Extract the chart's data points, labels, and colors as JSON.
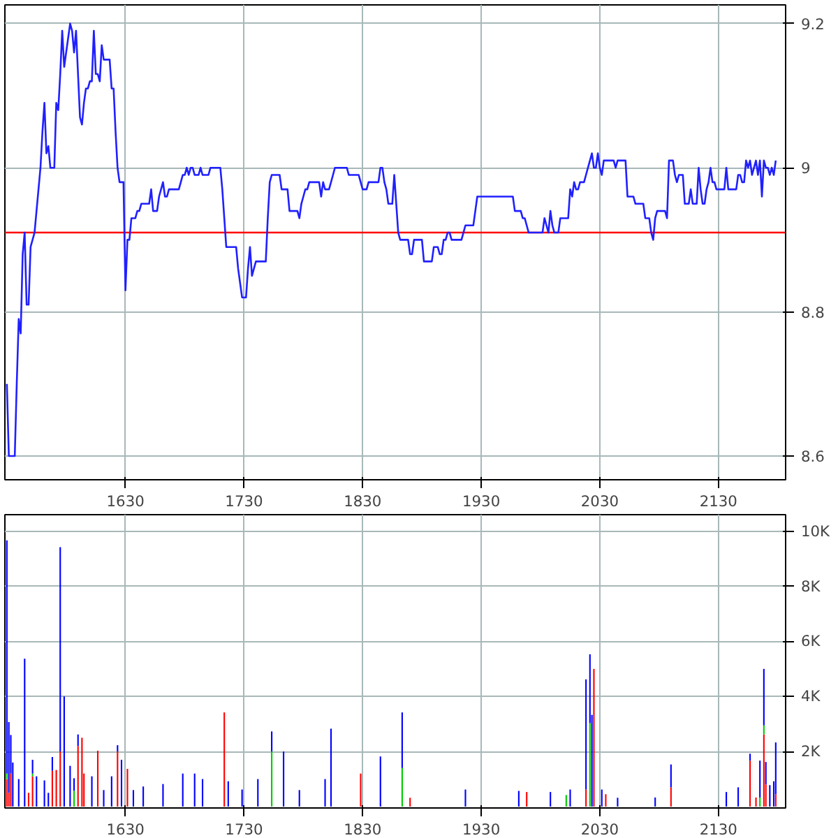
{
  "chart_data": [
    {
      "type": "line",
      "ylim": [
        8.567,
        9.226
      ],
      "grid": true,
      "yticks": [
        {
          "value": 8.6,
          "label": "8.6"
        },
        {
          "value": 8.8,
          "label": "8.8"
        },
        {
          "value": 9,
          "label": "9"
        },
        {
          "value": 9.2,
          "label": "9.2"
        }
      ],
      "ref_lines": [
        {
          "axis": "y",
          "value": 8.91,
          "color": "#ff0000"
        }
      ],
      "categories": [
        null,
        null,
        null,
        null,
        null,
        null,
        null,
        null,
        null,
        null,
        null,
        null,
        null,
        null,
        null,
        null,
        null,
        null,
        null,
        null,
        null,
        null,
        null,
        null,
        null,
        null,
        null,
        null,
        null,
        null,
        null,
        null,
        null,
        null,
        null,
        null,
        null,
        null,
        null,
        null,
        null,
        null,
        null,
        null,
        null,
        null,
        null,
        null,
        null,
        null,
        null,
        null,
        null,
        null,
        null,
        null,
        null,
        null,
        null,
        null,
        "1630",
        null,
        null,
        null,
        null,
        null,
        null,
        null,
        null,
        null,
        null,
        null,
        null,
        null,
        null,
        null,
        null,
        null,
        null,
        null,
        null,
        null,
        null,
        null,
        null,
        null,
        null,
        null,
        null,
        null,
        null,
        null,
        null,
        null,
        null,
        null,
        null,
        null,
        null,
        null,
        null,
        null,
        null,
        null,
        null,
        null,
        null,
        null,
        null,
        null,
        null,
        null,
        null,
        null,
        null,
        null,
        null,
        null,
        null,
        null,
        "1730",
        null,
        null,
        null,
        null,
        null,
        null,
        null,
        null,
        null,
        null,
        null,
        null,
        null,
        null,
        null,
        null,
        null,
        null,
        null,
        null,
        null,
        null,
        null,
        null,
        null,
        null,
        null,
        null,
        null,
        null,
        null,
        null,
        null,
        null,
        null,
        null,
        null,
        null,
        null,
        null,
        null,
        null,
        null,
        null,
        null,
        null,
        null,
        null,
        null,
        null,
        null,
        null,
        null,
        null,
        null,
        null,
        null,
        null,
        null,
        "1830",
        null,
        null,
        null,
        null,
        null,
        null,
        null,
        null,
        null,
        null,
        null,
        null,
        null,
        null,
        null,
        null,
        null,
        null,
        null,
        null,
        null,
        null,
        null,
        null,
        null,
        null,
        null,
        null,
        null,
        null,
        null,
        null,
        null,
        null,
        null,
        null,
        null,
        null,
        null,
        null,
        null,
        null,
        null,
        null,
        null,
        null,
        null,
        null,
        null,
        null,
        null,
        null,
        null,
        null,
        null,
        null,
        null,
        null,
        null,
        "1930",
        null,
        null,
        null,
        null,
        null,
        null,
        null,
        null,
        null,
        null,
        null,
        null,
        null,
        null,
        null,
        null,
        null,
        null,
        null,
        null,
        null,
        null,
        null,
        null,
        null,
        null,
        null,
        null,
        null,
        null,
        null,
        null,
        null,
        null,
        null,
        null,
        null,
        null,
        null,
        null,
        null,
        null,
        null,
        null,
        null,
        null,
        null,
        null,
        null,
        null,
        null,
        null,
        null,
        null,
        null,
        null,
        null,
        null,
        null,
        "2030",
        null,
        null,
        null,
        null,
        null,
        null,
        null,
        null,
        null,
        null,
        null,
        null,
        null,
        null,
        null,
        null,
        null,
        null,
        null,
        null,
        null,
        null,
        null,
        null,
        null,
        null,
        null,
        null,
        null,
        null,
        null,
        null,
        null,
        null,
        null,
        null,
        null,
        null,
        null,
        null,
        null,
        null,
        null,
        null,
        null,
        null,
        null,
        null,
        null,
        null,
        null,
        null,
        null,
        null,
        null,
        null,
        null,
        null,
        null,
        "2130",
        null,
        null,
        null,
        null,
        null,
        null,
        null,
        null,
        null,
        null,
        null,
        null,
        null,
        null,
        null,
        null,
        null,
        null,
        null,
        null,
        null,
        null,
        null,
        null,
        null,
        null,
        null,
        null,
        null,
        null,
        null,
        null,
        null
      ],
      "series": [
        {
          "color": "#2020ff",
          "values": [
            8.7,
            8.6,
            8.6,
            8.6,
            8.6,
            8.7,
            8.79,
            8.77,
            8.88,
            8.91,
            8.81,
            8.81,
            8.89,
            8.9,
            8.91,
            8.94,
            8.97,
            9.0,
            9.05,
            9.09,
            9.02,
            9.03,
            9.0,
            9.0,
            9.0,
            9.09,
            9.08,
            9.13,
            9.19,
            9.14,
            9.16,
            9.18,
            9.2,
            9.19,
            9.16,
            9.19,
            9.13,
            9.07,
            9.06,
            9.09,
            9.11,
            9.11,
            9.12,
            9.12,
            9.19,
            9.13,
            9.13,
            9.12,
            9.17,
            9.15,
            9.15,
            9.15,
            9.15,
            9.11,
            9.11,
            9.05,
            9.0,
            8.98,
            8.98,
            8.98,
            8.83,
            8.9,
            8.9,
            8.93,
            8.93,
            8.93,
            8.94,
            8.94,
            8.95,
            8.95,
            8.95,
            8.95,
            8.95,
            8.97,
            8.94,
            8.94,
            8.94,
            8.96,
            8.97,
            8.98,
            8.96,
            8.96,
            8.97,
            8.97,
            8.97,
            8.97,
            8.97,
            8.97,
            8.98,
            8.99,
            8.99,
            9.0,
            8.99,
            9.0,
            9.0,
            8.99,
            8.99,
            8.99,
            9.0,
            8.99,
            8.99,
            8.99,
            8.99,
            9.0,
            9.0,
            9.0,
            9.0,
            9.0,
            9.0,
            8.97,
            8.93,
            8.89,
            8.89,
            8.89,
            8.89,
            8.89,
            8.89,
            8.86,
            8.84,
            8.82,
            8.82,
            8.82,
            8.86,
            8.89,
            8.85,
            8.86,
            8.87,
            8.87,
            8.87,
            8.87,
            8.87,
            8.87,
            8.93,
            8.98,
            8.99,
            8.99,
            8.99,
            8.99,
            8.99,
            8.97,
            8.97,
            8.97,
            8.97,
            8.94,
            8.94,
            8.94,
            8.94,
            8.94,
            8.93,
            8.95,
            8.96,
            8.97,
            8.97,
            8.98,
            8.98,
            8.98,
            8.98,
            8.98,
            8.98,
            8.96,
            8.98,
            8.97,
            8.97,
            8.97,
            8.98,
            8.99,
            9.0,
            9.0,
            9.0,
            9.0,
            9.0,
            9.0,
            9.0,
            8.99,
            8.99,
            8.99,
            8.99,
            8.99,
            8.99,
            8.98,
            8.97,
            8.97,
            8.97,
            8.98,
            8.98,
            8.98,
            8.98,
            8.98,
            8.98,
            9.0,
            9.0,
            8.98,
            8.97,
            8.95,
            8.95,
            8.95,
            8.99,
            8.95,
            8.91,
            8.9,
            8.9,
            8.9,
            8.9,
            8.9,
            8.88,
            8.88,
            8.9,
            8.9,
            8.9,
            8.9,
            8.9,
            8.87,
            8.87,
            8.87,
            8.87,
            8.87,
            8.89,
            8.89,
            8.89,
            8.88,
            8.88,
            8.9,
            8.9,
            8.91,
            8.91,
            8.9,
            8.9,
            8.9,
            8.9,
            8.9,
            8.9,
            8.91,
            8.92,
            8.92,
            8.92,
            8.92,
            8.92,
            8.94,
            8.96,
            8.96,
            8.96,
            8.96,
            8.96,
            8.96,
            8.96,
            8.96,
            8.96,
            8.96,
            8.96,
            8.96,
            8.96,
            8.96,
            8.96,
            8.96,
            8.96,
            8.96,
            8.96,
            8.94,
            8.94,
            8.94,
            8.94,
            8.93,
            8.93,
            8.92,
            8.91,
            8.91,
            8.91,
            8.91,
            8.91,
            8.91,
            8.91,
            8.91,
            8.93,
            8.92,
            8.91,
            8.94,
            8.92,
            8.91,
            8.91,
            8.91,
            8.93,
            8.93,
            8.93,
            8.93,
            8.93,
            8.97,
            8.96,
            8.98,
            8.97,
            8.97,
            8.98,
            8.98,
            8.98,
            8.99,
            9.0,
            9.01,
            9.02,
            9.0,
            9.0,
            9.02,
            9.0,
            8.99,
            9.01,
            9.01,
            9.01,
            9.01,
            9.01,
            9.01,
            9.0,
            9.01,
            9.01,
            9.01,
            9.01,
            9.01,
            8.96,
            8.96,
            8.96,
            8.96,
            8.95,
            8.95,
            8.95,
            8.95,
            8.95,
            8.93,
            8.93,
            8.93,
            8.91,
            8.9,
            8.93,
            8.94,
            8.94,
            8.94,
            8.94,
            8.94,
            8.93,
            9.01,
            9.01,
            9.01,
            8.99,
            8.98,
            8.99,
            8.99,
            8.99,
            8.95,
            8.95,
            8.95,
            8.97,
            8.95,
            8.95,
            8.95,
            9.0,
            8.97,
            8.95,
            8.95,
            8.97,
            8.98,
            9.0,
            8.98,
            8.98,
            8.97,
            8.97,
            8.97,
            8.97,
            8.97,
            9.0,
            8.97,
            8.97,
            8.97,
            8.97,
            8.97,
            8.99,
            8.99,
            8.98,
            8.98,
            9.01,
            9.0,
            9.01,
            8.99,
            9.0,
            9.01,
            8.99,
            9.01,
            8.96,
            9.01,
            9.0,
            9.0,
            8.99,
            9.0,
            8.99,
            9.01,
            null,
            null,
            null,
            null
          ]
        }
      ]
    },
    {
      "type": "bar",
      "stacked": true,
      "ylim": [
        -50,
        10600
      ],
      "grid": true,
      "yticks": [
        {
          "value": 2000,
          "label": "2K"
        },
        {
          "value": 4000,
          "label": "4K"
        },
        {
          "value": 6000,
          "label": "6K"
        },
        {
          "value": 8000,
          "label": "8K"
        },
        {
          "value": 10000,
          "label": "10K"
        }
      ],
      "categories": [
        null,
        null,
        null,
        null,
        null,
        null,
        null,
        null,
        null,
        null,
        null,
        null,
        null,
        null,
        null,
        null,
        null,
        null,
        null,
        null,
        null,
        null,
        null,
        null,
        null,
        null,
        null,
        null,
        null,
        null,
        null,
        null,
        null,
        null,
        null,
        null,
        null,
        null,
        null,
        null,
        null,
        null,
        null,
        null,
        null,
        null,
        null,
        null,
        null,
        null,
        null,
        null,
        null,
        null,
        null,
        null,
        null,
        null,
        null,
        null,
        "1630",
        null,
        null,
        null,
        null,
        null,
        null,
        null,
        null,
        null,
        null,
        null,
        null,
        null,
        null,
        null,
        null,
        null,
        null,
        null,
        null,
        null,
        null,
        null,
        null,
        null,
        null,
        null,
        null,
        null,
        null,
        null,
        null,
        null,
        null,
        null,
        null,
        null,
        null,
        null,
        null,
        null,
        null,
        null,
        null,
        null,
        null,
        null,
        null,
        null,
        null,
        null,
        null,
        null,
        null,
        null,
        null,
        null,
        null,
        null,
        "1730",
        null,
        null,
        null,
        null,
        null,
        null,
        null,
        null,
        null,
        null,
        null,
        null,
        null,
        null,
        null,
        null,
        null,
        null,
        null,
        null,
        null,
        null,
        null,
        null,
        null,
        null,
        null,
        null,
        null,
        null,
        null,
        null,
        null,
        null,
        null,
        null,
        null,
        null,
        null,
        null,
        null,
        null,
        null,
        null,
        null,
        null,
        null,
        null,
        null,
        null,
        null,
        null,
        null,
        null,
        null,
        null,
        null,
        null,
        null,
        "1830",
        null,
        null,
        null,
        null,
        null,
        null,
        null,
        null,
        null,
        null,
        null,
        null,
        null,
        null,
        null,
        null,
        null,
        null,
        null,
        null,
        null,
        null,
        null,
        null,
        null,
        null,
        null,
        null,
        null,
        null,
        null,
        null,
        null,
        null,
        null,
        null,
        null,
        null,
        null,
        null,
        null,
        null,
        null,
        null,
        null,
        null,
        null,
        null,
        null,
        null,
        null,
        null,
        null,
        null,
        null,
        null,
        null,
        null,
        null,
        "1930",
        null,
        null,
        null,
        null,
        null,
        null,
        null,
        null,
        null,
        null,
        null,
        null,
        null,
        null,
        null,
        null,
        null,
        null,
        null,
        null,
        null,
        null,
        null,
        null,
        null,
        null,
        null,
        null,
        null,
        null,
        null,
        null,
        null,
        null,
        null,
        null,
        null,
        null,
        null,
        null,
        null,
        null,
        null,
        null,
        null,
        null,
        null,
        null,
        null,
        null,
        null,
        null,
        null,
        null,
        null,
        null,
        null,
        null,
        null,
        "2030",
        null,
        null,
        null,
        null,
        null,
        null,
        null,
        null,
        null,
        null,
        null,
        null,
        null,
        null,
        null,
        null,
        null,
        null,
        null,
        null,
        null,
        null,
        null,
        null,
        null,
        null,
        null,
        null,
        null,
        null,
        null,
        null,
        null,
        null,
        null,
        null,
        null,
        null,
        null,
        null,
        null,
        null,
        null,
        null,
        null,
        null,
        null,
        null,
        null,
        null,
        null,
        null,
        null,
        null,
        null,
        null,
        null,
        null,
        null,
        "2130",
        null,
        null,
        null,
        null,
        null,
        null,
        null,
        null,
        null,
        null,
        null,
        null,
        null,
        null,
        null,
        null,
        null,
        null,
        null,
        null,
        null,
        null,
        null,
        null,
        null,
        null,
        null,
        null,
        null,
        null,
        null,
        null,
        null
      ],
      "series": [
        {
          "color": "#ff0000",
          "values": [
            1000,
            500,
            1200,
            0,
            0,
            0,
            0,
            0,
            0,
            0,
            0,
            500,
            0,
            1100,
            0,
            0,
            0,
            0,
            0,
            0,
            0,
            0,
            0,
            1300,
            0,
            1330,
            0,
            2000,
            0,
            0,
            0,
            0,
            0,
            0,
            0,
            0,
            2200,
            0,
            2500,
            1200,
            0,
            0,
            0,
            0,
            0,
            0,
            2030,
            0,
            0,
            0,
            0,
            0,
            0,
            0,
            0,
            0,
            2000,
            0,
            0,
            0,
            0,
            1370,
            0,
            0,
            0,
            0,
            0,
            0,
            0,
            0,
            0,
            0,
            0,
            0,
            0,
            0,
            0,
            0,
            0,
            0,
            0,
            0,
            0,
            0,
            0,
            0,
            0,
            0,
            0,
            0,
            0,
            0,
            0,
            0,
            0,
            0,
            0,
            0,
            0,
            0,
            0,
            0,
            0,
            0,
            0,
            0,
            0,
            0,
            0,
            0,
            3420,
            0,
            0,
            0,
            0,
            0,
            0,
            0,
            0,
            0,
            0,
            0,
            0,
            0,
            0,
            0,
            0,
            0,
            0,
            0,
            0,
            0,
            0,
            0,
            0,
            0,
            0,
            0,
            0,
            0,
            0,
            0,
            0,
            0,
            0,
            0,
            0,
            0,
            0,
            0,
            0,
            0,
            0,
            0,
            0,
            0,
            0,
            0,
            0,
            0,
            0,
            0,
            0,
            0,
            0,
            0,
            0,
            0,
            0,
            0,
            0,
            0,
            0,
            0,
            0,
            0,
            0,
            0,
            0,
            1200,
            0,
            0,
            0,
            0,
            0,
            0,
            0,
            0,
            0,
            0,
            0,
            0,
            0,
            0,
            0,
            0,
            0,
            0,
            0,
            0,
            0,
            0,
            0,
            0,
            320,
            0,
            0,
            0,
            0,
            0,
            0,
            0,
            0,
            0,
            0,
            0,
            0,
            0,
            0,
            0,
            0,
            0,
            0,
            0,
            0,
            0,
            0,
            0,
            0,
            0,
            0,
            0,
            0,
            0,
            0,
            0,
            0,
            0,
            0,
            0,
            0,
            0,
            0,
            0,
            0,
            0,
            0,
            0,
            0,
            0,
            0,
            0,
            0,
            0,
            0,
            0,
            0,
            0,
            0,
            0,
            0,
            0,
            0,
            530,
            0,
            0,
            0,
            0,
            0,
            0,
            0,
            0,
            0,
            0,
            0,
            0,
            0,
            0,
            0,
            0,
            0,
            0,
            0,
            0,
            0,
            0,
            0,
            0,
            0,
            0,
            0,
            0,
            0,
            620,
            0,
            0,
            0,
            5000,
            0,
            0,
            0,
            0,
            0,
            450,
            0,
            0,
            0,
            0,
            0,
            0,
            0,
            0,
            0,
            0,
            0,
            0,
            0,
            0,
            0,
            0,
            0,
            0,
            0,
            0,
            0,
            0,
            0,
            0,
            0,
            0,
            0,
            0,
            0,
            0,
            0,
            0,
            700,
            0,
            0,
            0,
            0,
            0,
            0,
            0,
            0,
            0,
            0,
            0,
            0,
            0,
            0,
            0,
            0,
            0,
            0,
            0,
            0,
            0,
            0,
            0,
            0,
            0,
            0,
            0,
            0,
            0,
            0,
            0,
            0,
            0,
            0,
            0,
            0,
            0,
            0,
            0,
            1670,
            0,
            0,
            330,
            0,
            0,
            0,
            2620,
            800,
            0,
            0,
            0,
            0,
            450,
            0,
            0,
            0,
            0
          ]
        },
        {
          "color": "#00cc00",
          "values": [
            200,
            0,
            0,
            0,
            0,
            0,
            0,
            0,
            0,
            0,
            0,
            0,
            0,
            100,
            0,
            0,
            0,
            0,
            0,
            0,
            0,
            0,
            0,
            0,
            0,
            0,
            0,
            0,
            0,
            0,
            0,
            0,
            0,
            0,
            570,
            0,
            0,
            0,
            0,
            0,
            0,
            0,
            0,
            0,
            0,
            0,
            0,
            0,
            0,
            0,
            0,
            0,
            0,
            0,
            0,
            0,
            0,
            0,
            0,
            0,
            0,
            0,
            0,
            0,
            0,
            0,
            0,
            0,
            0,
            0,
            0,
            0,
            0,
            0,
            0,
            0,
            0,
            0,
            0,
            0,
            0,
            0,
            0,
            0,
            0,
            0,
            0,
            0,
            0,
            0,
            0,
            0,
            0,
            0,
            0,
            0,
            0,
            0,
            0,
            0,
            0,
            0,
            0,
            0,
            0,
            0,
            0,
            0,
            0,
            0,
            0,
            0,
            0,
            0,
            0,
            0,
            0,
            0,
            0,
            0,
            0,
            0,
            0,
            0,
            0,
            0,
            0,
            0,
            0,
            0,
            0,
            0,
            0,
            0,
            2000,
            0,
            0,
            0,
            0,
            0,
            0,
            0,
            0,
            0,
            0,
            0,
            0,
            0,
            0,
            0,
            0,
            0,
            0,
            0,
            0,
            0,
            0,
            0,
            0,
            0,
            0,
            0,
            0,
            0,
            0,
            0,
            0,
            0,
            0,
            0,
            0,
            0,
            0,
            0,
            0,
            0,
            0,
            0,
            0,
            0,
            0,
            0,
            0,
            0,
            0,
            0,
            0,
            0,
            0,
            0,
            0,
            0,
            0,
            0,
            0,
            0,
            0,
            0,
            0,
            0,
            1400,
            0,
            0,
            0,
            0,
            0,
            0,
            0,
            0,
            0,
            0,
            0,
            0,
            0,
            0,
            0,
            0,
            0,
            0,
            0,
            0,
            0,
            0,
            0,
            0,
            0,
            0,
            0,
            0,
            0,
            0,
            0,
            0,
            0,
            0,
            0,
            0,
            0,
            0,
            0,
            0,
            0,
            0,
            0,
            0,
            0,
            0,
            0,
            0,
            0,
            0,
            0,
            0,
            0,
            0,
            0,
            0,
            0,
            0,
            0,
            0,
            0,
            0,
            0,
            0,
            0,
            0,
            0,
            0,
            0,
            0,
            0,
            0,
            0,
            0,
            0,
            0,
            0,
            0,
            0,
            0,
            0,
            0,
            420,
            0,
            0,
            0,
            0,
            0,
            0,
            0,
            0,
            0,
            0,
            0,
            3030,
            0,
            0,
            0,
            0,
            0,
            0,
            0,
            0,
            0,
            0,
            0,
            0,
            0,
            0,
            0,
            0,
            0,
            0,
            0,
            0,
            0,
            0,
            0,
            0,
            0,
            0,
            0,
            0,
            0,
            0,
            0,
            0,
            0,
            0,
            0,
            0,
            0,
            0,
            0,
            0,
            0,
            0,
            0,
            0,
            0,
            0,
            0,
            0,
            0,
            0,
            0,
            0,
            0,
            0,
            0,
            0,
            0,
            0,
            0,
            0,
            0,
            0,
            0,
            0,
            0,
            0,
            0,
            0,
            0,
            0,
            0,
            0,
            0,
            0,
            0,
            0,
            0,
            0,
            0,
            0,
            0,
            0,
            0,
            0,
            0,
            330,
            0,
            330,
            0,
            0,
            0,
            0,
            0,
            0,
            0,
            0,
            0,
            0
          ]
        },
        {
          "color": "#0000ff",
          "values": [
            8470,
            2570,
            1400,
            1600,
            0,
            0,
            1000,
            0,
            0,
            5370,
            0,
            0,
            0,
            500,
            0,
            1100,
            0,
            0,
            0,
            950,
            0,
            500,
            0,
            500,
            0,
            0,
            0,
            7420,
            0,
            4000,
            0,
            0,
            1480,
            0,
            460,
            0,
            420,
            0,
            0,
            0,
            0,
            0,
            0,
            1100,
            0,
            0,
            0,
            0,
            0,
            600,
            0,
            0,
            0,
            1100,
            0,
            0,
            230,
            0,
            1700,
            0,
            0,
            0,
            0,
            0,
            600,
            0,
            0,
            0,
            0,
            730,
            0,
            0,
            0,
            0,
            0,
            0,
            0,
            0,
            0,
            820,
            0,
            0,
            0,
            0,
            0,
            0,
            0,
            0,
            0,
            1200,
            0,
            0,
            0,
            0,
            0,
            1200,
            0,
            0,
            0,
            1000,
            0,
            0,
            0,
            0,
            0,
            0,
            0,
            0,
            0,
            0,
            0,
            0,
            920,
            0,
            0,
            0,
            0,
            0,
            0,
            620,
            0,
            0,
            0,
            0,
            0,
            0,
            0,
            1000,
            0,
            0,
            0,
            0,
            0,
            0,
            730,
            0,
            0,
            0,
            0,
            0,
            2000,
            0,
            0,
            0,
            0,
            0,
            0,
            0,
            600,
            0,
            0,
            0,
            0,
            0,
            0,
            0,
            0,
            0,
            0,
            0,
            0,
            1000,
            0,
            0,
            2830,
            0,
            0,
            0,
            0,
            0,
            0,
            0,
            0,
            0,
            0,
            0,
            0,
            0,
            0,
            0,
            0,
            0,
            0,
            0,
            0,
            0,
            0,
            0,
            0,
            1820,
            0,
            0,
            0,
            0,
            0,
            0,
            0,
            0,
            0,
            0,
            2020,
            0,
            0,
            0,
            0,
            0,
            0,
            0,
            0,
            0,
            0,
            0,
            0,
            0,
            0,
            0,
            0,
            0,
            0,
            0,
            0,
            0,
            0,
            0,
            0,
            0,
            0,
            0,
            0,
            0,
            0,
            0,
            620,
            0,
            0,
            0,
            0,
            0,
            0,
            0,
            0,
            0,
            0,
            0,
            0,
            0,
            0,
            0,
            0,
            0,
            0,
            0,
            0,
            0,
            0,
            0,
            0,
            0,
            0,
            570,
            0,
            0,
            0,
            0,
            0,
            0,
            0,
            0,
            0,
            0,
            0,
            0,
            0,
            0,
            0,
            530,
            0,
            0,
            0,
            0,
            0,
            0,
            0,
            0,
            0,
            620,
            0,
            0,
            0,
            0,
            0,
            0,
            0,
            4000,
            0,
            2500,
            3330,
            0,
            0,
            0,
            0,
            620,
            0,
            0,
            0,
            0,
            0,
            0,
            0,
            320,
            0,
            0,
            0,
            0,
            0,
            0,
            0,
            0,
            0,
            0,
            0,
            0,
            0,
            0,
            0,
            0,
            0,
            0,
            330,
            0,
            0,
            0,
            0,
            0,
            0,
            0,
            830,
            0,
            0,
            0,
            0,
            0,
            0,
            0,
            0,
            0,
            0,
            0,
            0,
            0,
            0,
            0,
            0,
            0,
            0,
            0,
            0,
            0,
            0,
            0,
            0,
            0,
            0,
            0,
            530,
            0,
            0,
            0,
            0,
            0,
            700,
            0,
            0,
            0,
            0,
            0,
            250,
            0,
            0,
            0,
            0,
            1340,
            0,
            2050,
            820,
            0,
            780,
            0,
            920,
            1880,
            0,
            0,
            0,
            0
          ]
        }
      ]
    }
  ]
}
